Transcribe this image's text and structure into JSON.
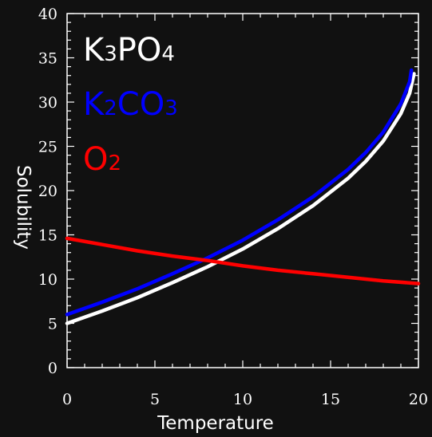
{
  "chart_data": {
    "type": "line",
    "title": "",
    "xlabel": "Temperature",
    "ylabel": "Solubility",
    "xlim": [
      0,
      20
    ],
    "ylim": [
      0,
      40
    ],
    "x_ticks": [
      "0",
      "5",
      "10",
      "15",
      "20"
    ],
    "y_ticks": [
      "0",
      "5",
      "10",
      "15",
      "20",
      "25",
      "30",
      "35",
      "40"
    ],
    "grid": false,
    "legend": "top-left",
    "series": [
      {
        "name": "K₃PO₄",
        "color": "#ffffff",
        "x": [
          0,
          2,
          4,
          6,
          8,
          10,
          12,
          14,
          16,
          17,
          18,
          19,
          19.5,
          19.75
        ],
        "y": [
          5.0,
          6.4,
          7.9,
          9.6,
          11.4,
          13.4,
          15.7,
          18.3,
          21.4,
          23.3,
          25.6,
          28.7,
          31.0,
          33.2
        ]
      },
      {
        "name": "K₂CO₃",
        "color": "#0000ff",
        "x": [
          0,
          2,
          4,
          6,
          8,
          10,
          12,
          14,
          16,
          17,
          18,
          19,
          19.5,
          19.6
        ],
        "y": [
          6.0,
          7.4,
          8.9,
          10.6,
          12.4,
          14.4,
          16.7,
          19.3,
          22.4,
          24.3,
          26.6,
          29.8,
          32.3,
          33.6
        ]
      },
      {
        "name": "O₂",
        "color": "#ff0000",
        "x": [
          0,
          2,
          4,
          6,
          8,
          10,
          12,
          14,
          16,
          18,
          20
        ],
        "y": [
          14.6,
          13.9,
          13.2,
          12.6,
          12.1,
          11.5,
          11.0,
          10.6,
          10.2,
          9.8,
          9.5
        ]
      }
    ]
  },
  "legend": {
    "k3po4": {
      "part1": "K",
      "sub1": "3",
      "part2": "PO",
      "sub2": "4"
    },
    "k2co3": {
      "part1": "K",
      "sub1": "2",
      "part2": "CO",
      "sub2": "3"
    },
    "o2": {
      "part1": "O",
      "sub1": "2"
    }
  }
}
